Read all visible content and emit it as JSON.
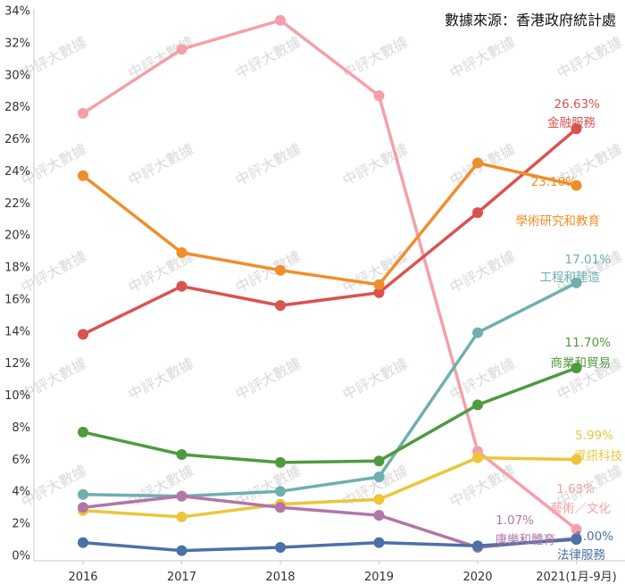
{
  "chart_data": {
    "type": "line",
    "source": "數據來源：香港政府統計處",
    "watermark": "中評大數據",
    "categories": [
      "2016",
      "2017",
      "2018",
      "2019",
      "2020",
      "2021(1月-9月)"
    ],
    "ylim": [
      0,
      34
    ],
    "yticks": [
      "0%",
      "2%",
      "4%",
      "6%",
      "8%",
      "10%",
      "12%",
      "14%",
      "16%",
      "18%",
      "20%",
      "22%",
      "24%",
      "26%",
      "28%",
      "30%",
      "32%",
      "34%"
    ],
    "grid": false,
    "series": [
      {
        "key": "arts",
        "name": "藝術／文化",
        "label_value": "1.63%",
        "color": "#f4a0ab",
        "values": [
          27.6,
          31.6,
          33.4,
          28.7,
          6.5,
          1.63
        ]
      },
      {
        "key": "finance",
        "name": "金融服務",
        "label_value": "26.63%",
        "color": "#d9534f",
        "values": [
          13.8,
          16.8,
          15.6,
          16.4,
          21.4,
          26.63
        ]
      },
      {
        "key": "research",
        "name": "學術研究和教育",
        "label_value": "23.10%",
        "color": "#ee8f2b",
        "values": [
          23.7,
          18.9,
          17.8,
          16.9,
          24.5,
          23.1
        ]
      },
      {
        "key": "engineering",
        "name": "工程和建造",
        "label_value": "17.01%",
        "color": "#6fb0ae",
        "values": [
          3.8,
          3.7,
          4.0,
          4.9,
          13.9,
          17.01
        ]
      },
      {
        "key": "trade",
        "name": "商業和貿易",
        "label_value": "11.70%",
        "color": "#4f9a3f",
        "values": [
          7.7,
          6.3,
          5.8,
          5.9,
          9.4,
          11.7
        ]
      },
      {
        "key": "it",
        "name": "資訊科技",
        "label_value": "5.99%",
        "color": "#ebc63c",
        "values": [
          2.8,
          2.4,
          3.2,
          3.5,
          6.1,
          5.99
        ]
      },
      {
        "key": "health",
        "name": "康樂和體育",
        "label_value": "1.07%",
        "color": "#b276a8",
        "values": [
          3.0,
          3.7,
          3.0,
          2.5,
          0.5,
          1.07
        ]
      },
      {
        "key": "legal",
        "name": "法律服務",
        "label_value": "1.00%",
        "color": "#4a72a6",
        "values": [
          0.8,
          0.3,
          0.5,
          0.8,
          0.6,
          1.0
        ]
      }
    ]
  }
}
